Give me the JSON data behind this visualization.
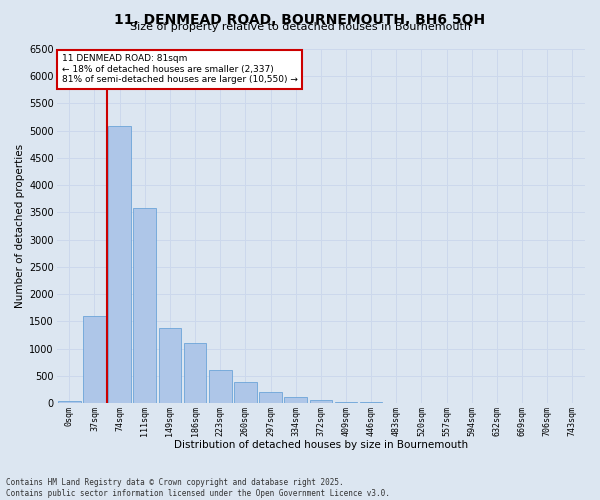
{
  "title": "11, DENMEAD ROAD, BOURNEMOUTH, BH6 5QH",
  "subtitle": "Size of property relative to detached houses in Bournemouth",
  "xlabel": "Distribution of detached houses by size in Bournemouth",
  "ylabel": "Number of detached properties",
  "bar_labels": [
    "0sqm",
    "37sqm",
    "74sqm",
    "111sqm",
    "149sqm",
    "186sqm",
    "223sqm",
    "260sqm",
    "297sqm",
    "334sqm",
    "372sqm",
    "409sqm",
    "446sqm",
    "483sqm",
    "520sqm",
    "557sqm",
    "594sqm",
    "632sqm",
    "669sqm",
    "706sqm",
    "743sqm"
  ],
  "bar_values": [
    30,
    1600,
    5080,
    3580,
    1380,
    1100,
    600,
    380,
    200,
    110,
    55,
    28,
    14,
    7,
    4,
    3,
    2,
    1,
    1,
    1,
    1
  ],
  "bar_color": "#aec6e8",
  "bar_edge_color": "#5b9bd5",
  "vline_color": "#cc0000",
  "annotation_title": "11 DENMEAD ROAD: 81sqm",
  "annotation_line2": "← 18% of detached houses are smaller (2,337)",
  "annotation_line3": "81% of semi-detached houses are larger (10,550) →",
  "annotation_box_color": "#ffffff",
  "annotation_box_edge": "#cc0000",
  "ylim": [
    0,
    6500
  ],
  "yticks": [
    0,
    500,
    1000,
    1500,
    2000,
    2500,
    3000,
    3500,
    4000,
    4500,
    5000,
    5500,
    6000,
    6500
  ],
  "grid_color": "#ccd8ec",
  "bg_color": "#dce6f1",
  "footnote1": "Contains HM Land Registry data © Crown copyright and database right 2025.",
  "footnote2": "Contains public sector information licensed under the Open Government Licence v3.0."
}
